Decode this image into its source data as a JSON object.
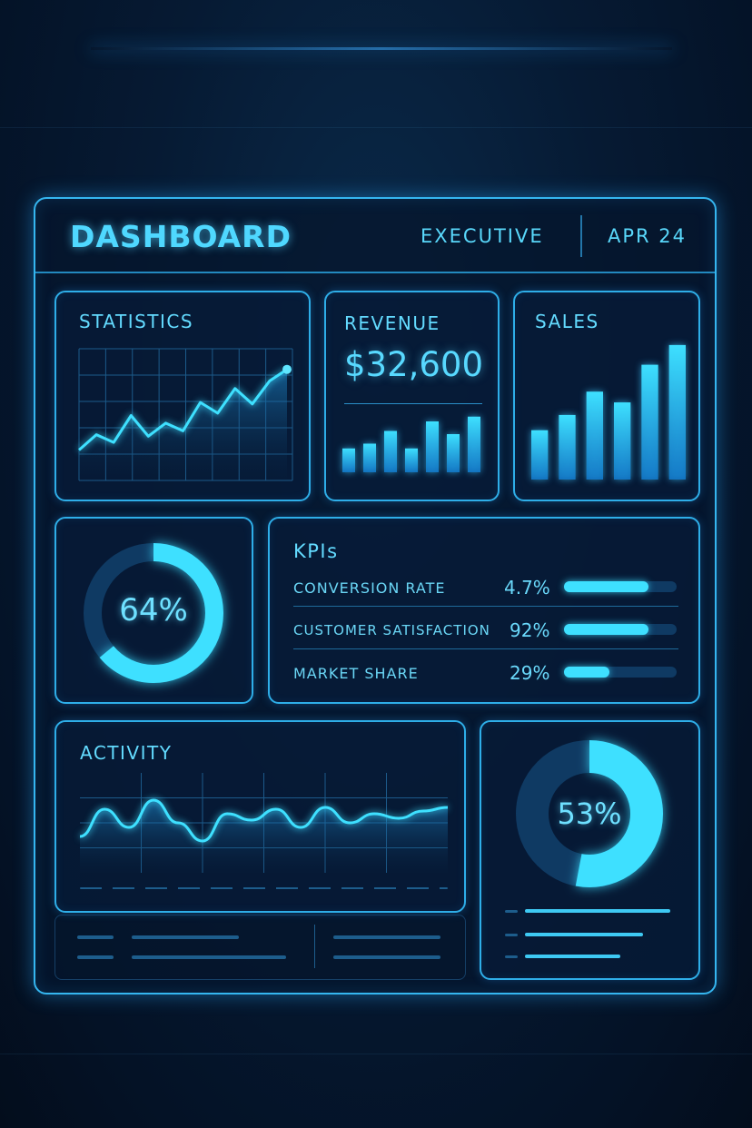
{
  "header": {
    "title": "DASHBOARD",
    "subtitle": "EXECUTIVE",
    "date": "APR 24"
  },
  "statistics": {
    "label": "STATISTICS",
    "chart_data": {
      "type": "line",
      "x": [
        0,
        1,
        2,
        3,
        4,
        5,
        6,
        7,
        8,
        9,
        10,
        11,
        12
      ],
      "values": [
        10,
        30,
        20,
        55,
        28,
        45,
        35,
        72,
        58,
        90,
        70,
        100,
        115
      ],
      "ylim": [
        0,
        130
      ]
    }
  },
  "revenue": {
    "label": "REVENUE",
    "amount": "$32,600",
    "chart_data": {
      "type": "bar",
      "values": [
        30,
        36,
        52,
        30,
        64,
        48,
        70
      ],
      "ylim": [
        0,
        80
      ]
    }
  },
  "sales": {
    "label": "SALES",
    "chart_data": {
      "type": "bar",
      "values": [
        55,
        72,
        98,
        86,
        128,
        150
      ],
      "ylim": [
        0,
        160
      ]
    }
  },
  "donut_main": {
    "value_label": "64%",
    "fraction": 0.64
  },
  "kpis": {
    "title": "KPIs",
    "items": [
      {
        "name": "CONVERSION RATE",
        "value": "4.7%",
        "fill": 0.75
      },
      {
        "name": "CUSTOMER SATISFACTION",
        "value": "92%",
        "fill": 0.75
      },
      {
        "name": "MARKET SHARE",
        "value": "29%",
        "fill": 0.4
      }
    ]
  },
  "activity": {
    "label": "ACTIVITY",
    "chart_data": {
      "type": "area",
      "x": [
        0,
        1,
        2,
        3,
        4,
        5,
        6,
        7,
        8,
        9,
        10,
        11,
        12,
        13,
        14,
        15
      ],
      "values": [
        30,
        60,
        40,
        70,
        45,
        25,
        55,
        48,
        60,
        40,
        62,
        45,
        55,
        50,
        58,
        62
      ],
      "ylim": [
        0,
        90
      ]
    }
  },
  "donut_secondary": {
    "value_label": "53%",
    "fraction": 0.53
  },
  "colors": {
    "accent": "#3ee0ff",
    "border": "#2eaee8",
    "dark": "#0f3a63"
  }
}
